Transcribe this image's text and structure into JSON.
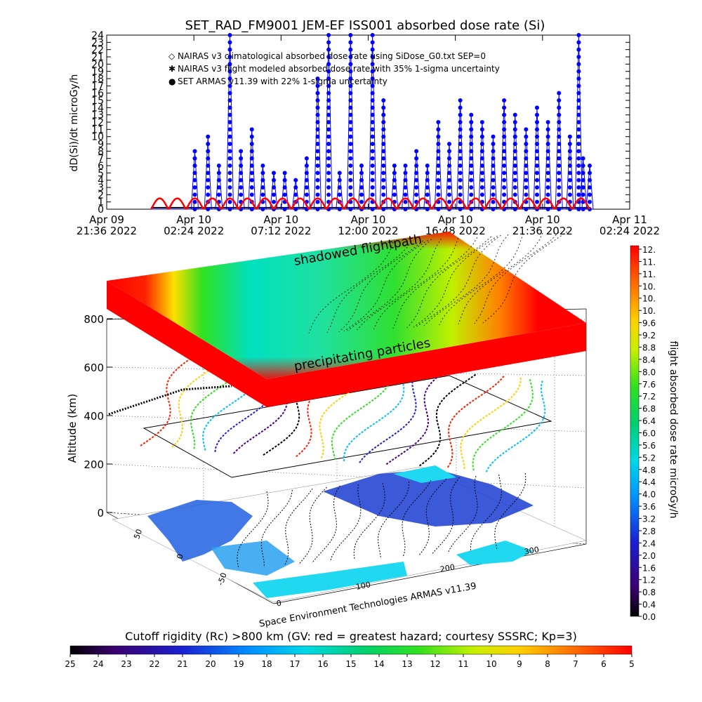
{
  "chart_data": [
    {
      "type": "scatter",
      "title": "SET_RAD_FM9001  JEM-EF ISS001 absorbed dose rate (Si)",
      "ylabel": "dD(Si)/dt microGy/h",
      "ylim": [
        0,
        24
      ],
      "yticks": [
        "0",
        "1",
        "2",
        "3",
        "4",
        "5",
        "6",
        "7",
        "8",
        "9",
        "10",
        "11",
        "12",
        "13",
        "14",
        "15",
        "16",
        "17",
        "18",
        "19",
        "20",
        "21",
        "22",
        "23",
        "24"
      ],
      "xticks": [
        {
          "line1": "Apr 09",
          "line2": "21:36 2022"
        },
        {
          "line1": "Apr 10",
          "line2": "02:24 2022"
        },
        {
          "line1": "Apr 10",
          "line2": "07:12 2022"
        },
        {
          "line1": "Apr 10",
          "line2": "12:00 2022"
        },
        {
          "line1": "Apr 10",
          "line2": "16:48 2022"
        },
        {
          "line1": "Apr 10",
          "line2": "21:36 2022"
        },
        {
          "line1": "Apr 11",
          "line2": "02:24 2022"
        }
      ],
      "legend": [
        {
          "symbol": "◇",
          "color": "#ff0000",
          "label": "NAIRAS v3 climatological absorbed dose rate using SiDose_G0.txt SEP=0"
        },
        {
          "symbol": "✱",
          "color": "#000000",
          "label": "NAIRAS v3 flight modeled absorbed dose rate with 35% 1-sigma uncertainty"
        },
        {
          "symbol": "●",
          "color": "#0000ff",
          "label": "SET ARMAS v11.39 with 22% 1-sigma uncertainty"
        }
      ],
      "legend_position": "top-left",
      "series": [
        {
          "name": "SET ARMAS v11.39 with 22% 1-sigma uncertainty",
          "color": "#0000ff",
          "peaks": [
            {
              "x": 0.1,
              "y": 8
            },
            {
              "x": 0.13,
              "y": 10
            },
            {
              "x": 0.155,
              "y": 6
            },
            {
              "x": 0.18,
              "y": 24
            },
            {
              "x": 0.205,
              "y": 8
            },
            {
              "x": 0.23,
              "y": 11
            },
            {
              "x": 0.255,
              "y": 6
            },
            {
              "x": 0.28,
              "y": 5
            },
            {
              "x": 0.305,
              "y": 5
            },
            {
              "x": 0.33,
              "y": 4
            },
            {
              "x": 0.355,
              "y": 7
            },
            {
              "x": 0.38,
              "y": 18
            },
            {
              "x": 0.405,
              "y": 24
            },
            {
              "x": 0.43,
              "y": 5
            },
            {
              "x": 0.455,
              "y": 24
            },
            {
              "x": 0.48,
              "y": 6
            },
            {
              "x": 0.505,
              "y": 24
            },
            {
              "x": 0.53,
              "y": 15
            },
            {
              "x": 0.555,
              "y": 6
            },
            {
              "x": 0.58,
              "y": 6
            },
            {
              "x": 0.605,
              "y": 8
            },
            {
              "x": 0.63,
              "y": 6
            },
            {
              "x": 0.655,
              "y": 12
            },
            {
              "x": 0.68,
              "y": 9
            },
            {
              "x": 0.705,
              "y": 15
            },
            {
              "x": 0.73,
              "y": 13
            },
            {
              "x": 0.755,
              "y": 12
            },
            {
              "x": 0.78,
              "y": 10
            },
            {
              "x": 0.805,
              "y": 15
            },
            {
              "x": 0.83,
              "y": 13
            },
            {
              "x": 0.855,
              "y": 11
            },
            {
              "x": 0.88,
              "y": 14
            },
            {
              "x": 0.905,
              "y": 12
            },
            {
              "x": 0.93,
              "y": 16
            },
            {
              "x": 0.955,
              "y": 10
            },
            {
              "x": 0.975,
              "y": 24
            },
            {
              "x": 0.985,
              "y": 7
            },
            {
              "x": 1.0,
              "y": 6
            }
          ]
        },
        {
          "name": "NAIRAS v3 climatological absorbed dose rate using SiDose_G0.txt SEP=0",
          "color": "#ff0000",
          "peaks": [
            {
              "x": 0.02,
              "y": 1.5
            },
            {
              "x": 0.06,
              "y": 1.5
            },
            {
              "x": 0.1,
              "y": 1.5
            },
            {
              "x": 0.14,
              "y": 1.5
            },
            {
              "x": 0.18,
              "y": 1.5
            },
            {
              "x": 0.22,
              "y": 1.5
            },
            {
              "x": 0.26,
              "y": 1.5
            },
            {
              "x": 0.3,
              "y": 1.5
            },
            {
              "x": 0.34,
              "y": 1.5
            },
            {
              "x": 0.38,
              "y": 1.5
            },
            {
              "x": 0.42,
              "y": 1.5
            },
            {
              "x": 0.46,
              "y": 1.5
            },
            {
              "x": 0.5,
              "y": 1.5
            },
            {
              "x": 0.54,
              "y": 1.5
            },
            {
              "x": 0.58,
              "y": 1.5
            },
            {
              "x": 0.62,
              "y": 1.5
            },
            {
              "x": 0.66,
              "y": 1.5
            },
            {
              "x": 0.7,
              "y": 1.5
            },
            {
              "x": 0.74,
              "y": 1.5
            },
            {
              "x": 0.78,
              "y": 1.5
            },
            {
              "x": 0.82,
              "y": 1.5
            },
            {
              "x": 0.86,
              "y": 1.5
            },
            {
              "x": 0.9,
              "y": 1.5
            },
            {
              "x": 0.94,
              "y": 1.5
            },
            {
              "x": 0.98,
              "y": 1.5
            }
          ]
        },
        {
          "name": "NAIRAS v3 flight modeled absorbed dose rate with 35% 1-sigma uncertainty",
          "color": "#000000",
          "peaks": [
            {
              "x": 0.0,
              "y": 0.2
            },
            {
              "x": 1.0,
              "y": 0.2
            }
          ]
        }
      ]
    },
    {
      "type": "surface",
      "annotations": [
        "shadowed flightpath",
        "precipitating particles",
        "Space Environment Technologies ARMAS v11.39"
      ],
      "zlabel": "Altitude (km)",
      "zticks": [
        "0",
        "200",
        "400",
        "600",
        "800"
      ],
      "lat_ticks": [
        "-50",
        "0",
        "50"
      ],
      "lon_ticks": [
        "0",
        "100",
        "200",
        "300"
      ]
    },
    {
      "type": "colorbar",
      "label": "flight absorbed dose rate microGy/h",
      "orientation": "vertical",
      "ticks": [
        "12.",
        "11.",
        "11.",
        "10.",
        "10.",
        "10.",
        "9.6",
        "9.2",
        "8.8",
        "8.4",
        "8.0",
        "7.6",
        "7.2",
        "6.8",
        "6.4",
        "6.0",
        "5.6",
        "5.2",
        "4.8",
        "4.4",
        "4.0",
        "3.6",
        "3.2",
        "2.8",
        "2.4",
        "2.0",
        "1.6",
        "1.2",
        "0.8",
        "0.4",
        "0.0"
      ]
    },
    {
      "type": "colorbar",
      "label": "Cutoff rigidity (Rc) >800 km (GV: red = greatest hazard; courtesy SSSRC; Kp=3)",
      "orientation": "horizontal",
      "ticks": [
        "25",
        "24",
        "23",
        "22",
        "21",
        "20",
        "19",
        "18",
        "17",
        "16",
        "15",
        "14",
        "13",
        "12",
        "11",
        "10",
        "9",
        "8",
        "7",
        "6",
        "5"
      ]
    }
  ]
}
